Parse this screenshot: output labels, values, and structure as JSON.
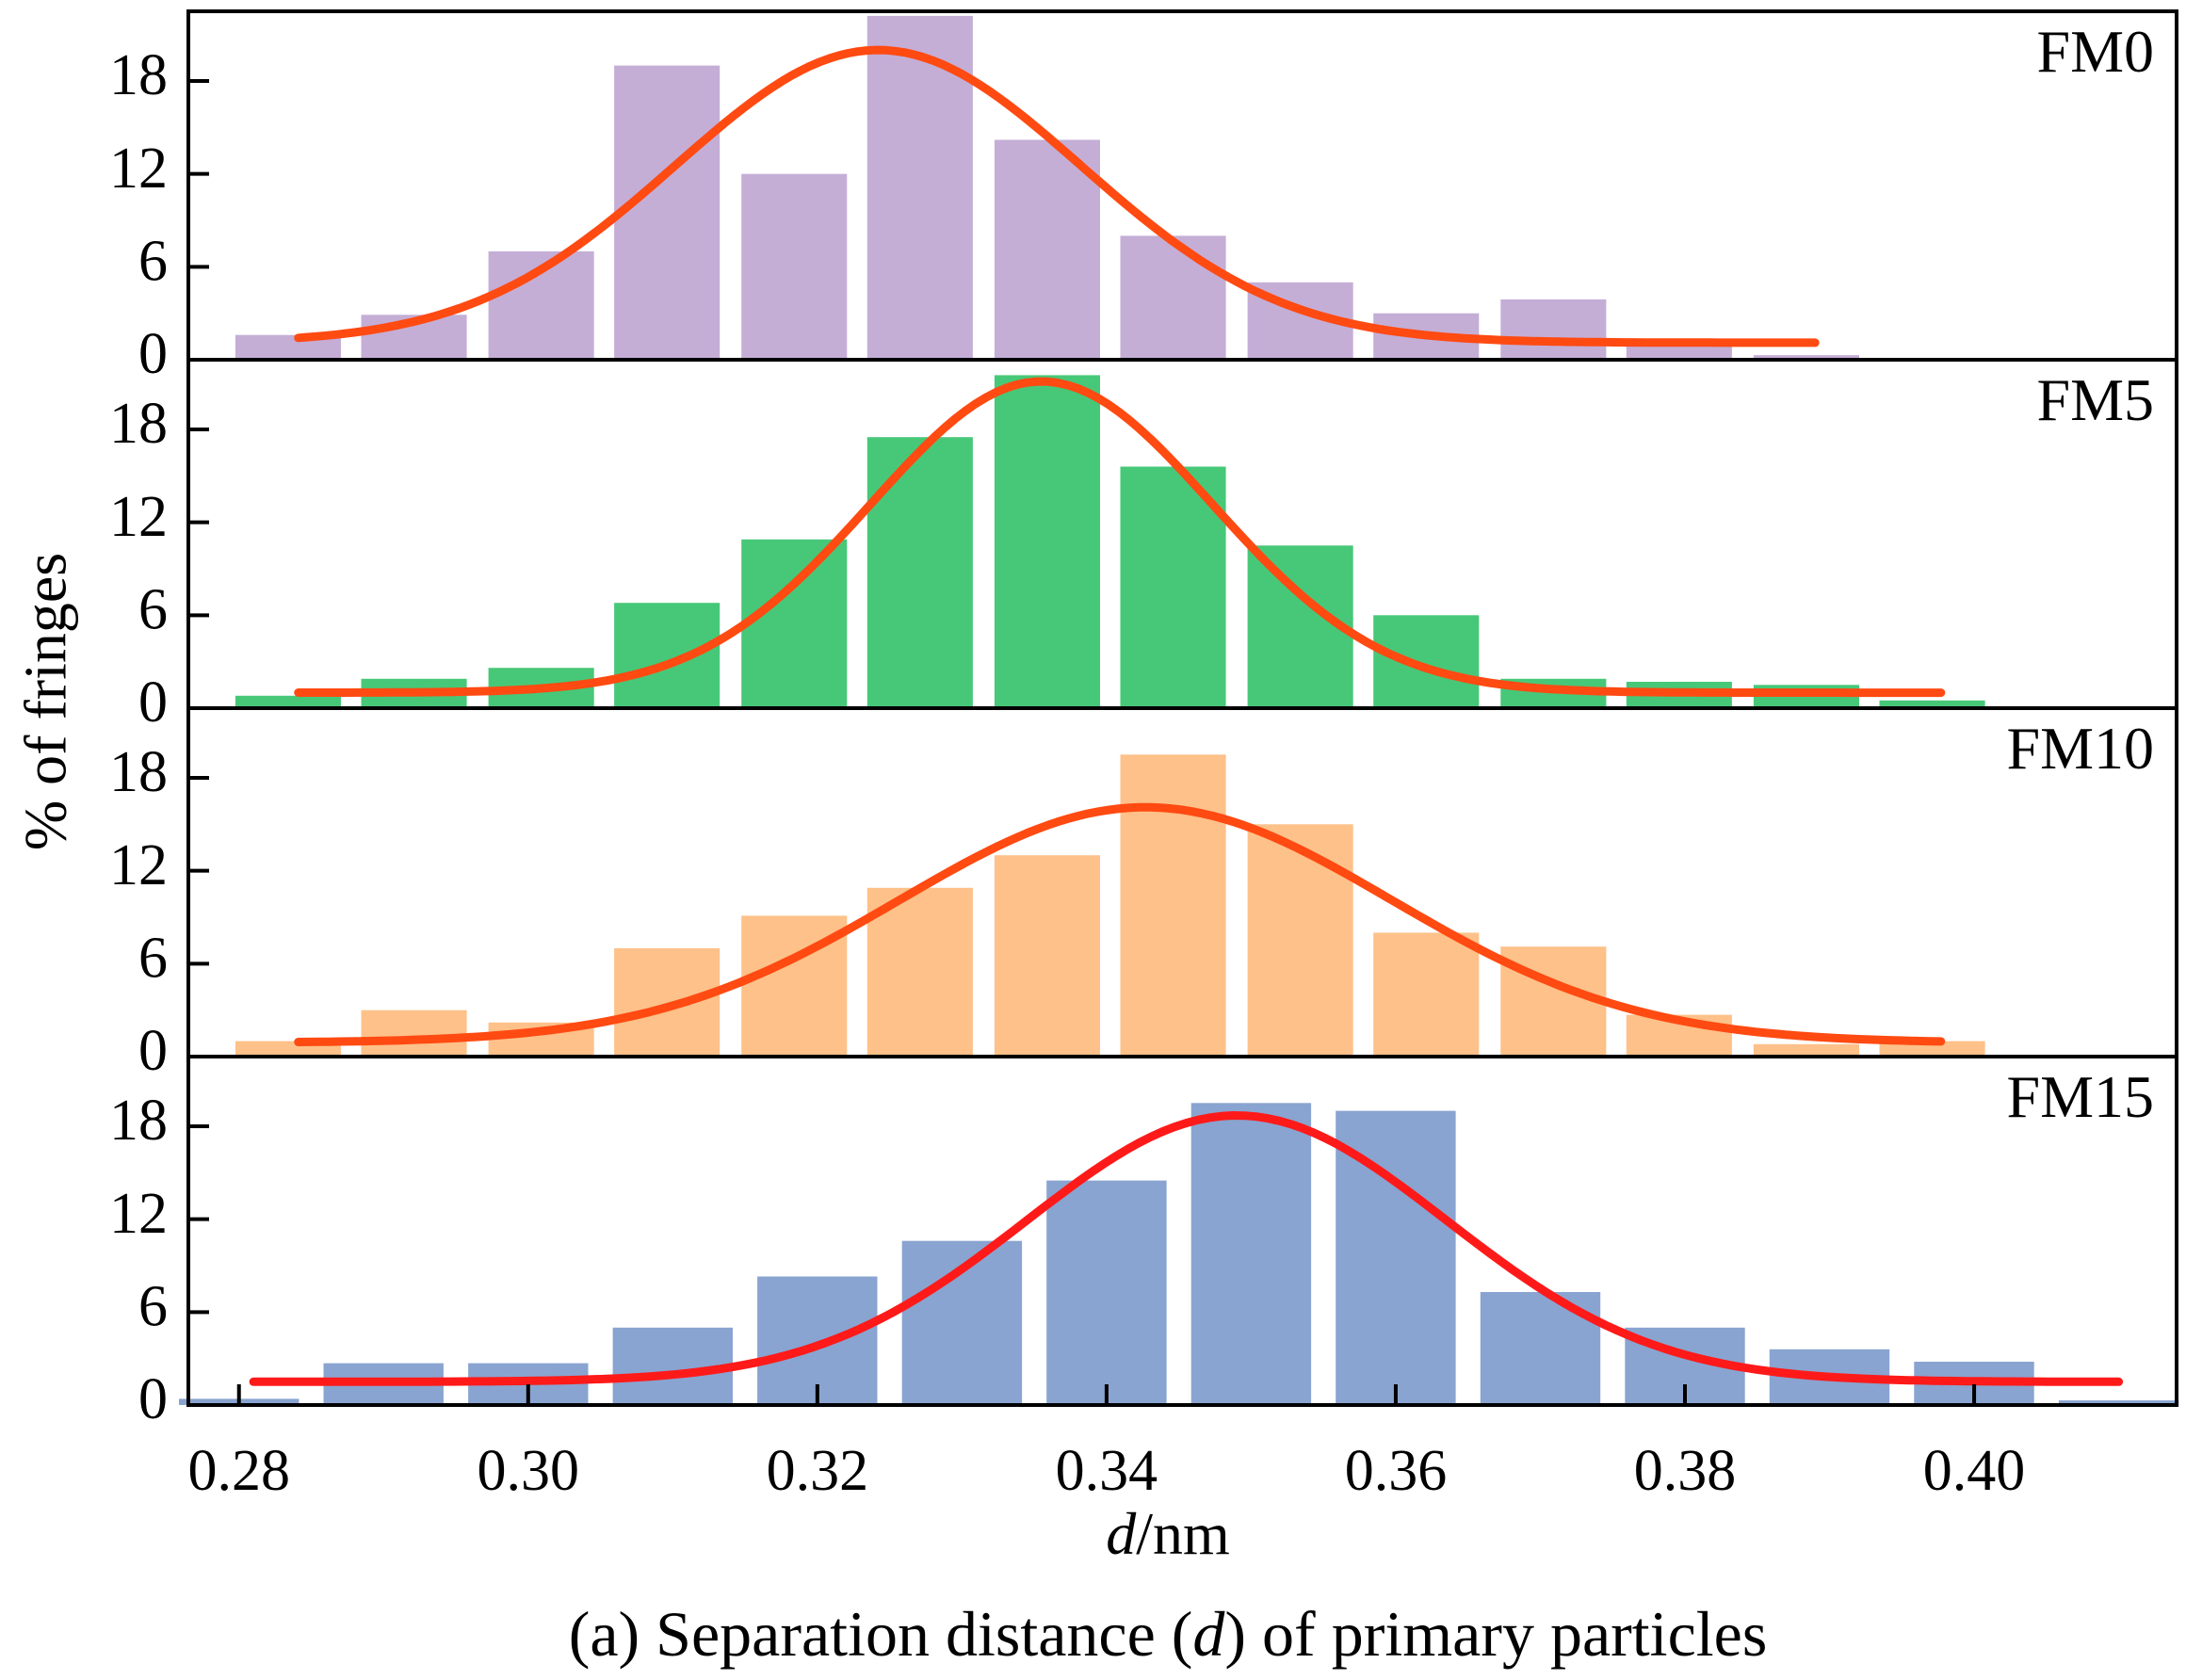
{
  "chart_data": {
    "type": "bar",
    "caption": "(a) Separation distance (d) of primary particles",
    "caption_parts": {
      "before": "(a) Separation distance (",
      "var": "d",
      "after": ") of primary particles"
    },
    "xlabel_parts": {
      "var": "d",
      "unit": "/nm"
    },
    "ylabel": "% of fringes",
    "xlim": [
      0.2765,
      0.414
    ],
    "ylim": [
      0,
      22.5
    ],
    "xticks": [
      0.28,
      0.3,
      0.32,
      0.34,
      0.36,
      0.38,
      0.4
    ],
    "xtick_labels": [
      "0.28",
      "0.30",
      "0.32",
      "0.34",
      "0.36",
      "0.38",
      "0.40"
    ],
    "yticks": [
      0,
      6,
      12,
      18
    ],
    "ytick_labels": [
      "0",
      "6",
      "12",
      "18"
    ],
    "grid": false,
    "panels": [
      {
        "label": "FM0",
        "bar_color": "#c4aed6",
        "fit_color": "#ff4a12",
        "bar_width": 0.0073,
        "x": [
          0.2834,
          0.2921,
          0.3009,
          0.3096,
          0.3184,
          0.3271,
          0.3359,
          0.3446,
          0.3534,
          0.3621,
          0.3709,
          0.3796,
          0.3884
        ],
        "values": [
          1.6,
          2.9,
          7.0,
          19.0,
          12.0,
          22.2,
          14.2,
          8.0,
          5.0,
          3.0,
          3.9,
          0.9,
          0.3
        ],
        "fit_range": [
          0.2841,
          0.389
        ],
        "fit": {
          "peak": 18.9,
          "center": 0.3242,
          "sigma": 0.014,
          "baseline": 1.1
        }
      },
      {
        "label": "FM5",
        "bar_color": "#47c878",
        "fit_color": "#ff4a12",
        "bar_width": 0.0073,
        "x": [
          0.2834,
          0.2921,
          0.3009,
          0.3096,
          0.3184,
          0.3271,
          0.3359,
          0.3446,
          0.3534,
          0.3621,
          0.3709,
          0.3796,
          0.3884,
          0.3971
        ],
        "values": [
          0.8,
          1.9,
          2.6,
          6.8,
          10.9,
          17.5,
          21.5,
          15.6,
          10.5,
          6.0,
          1.9,
          1.7,
          1.5,
          0.5
        ],
        "fit_range": [
          0.2841,
          0.3977
        ],
        "fit": {
          "peak": 20.1,
          "center": 0.3355,
          "sigma": 0.0118,
          "baseline": 1.0
        }
      },
      {
        "label": "FM10",
        "bar_color": "#fdc189",
        "fit_color": "#ff4a12",
        "bar_width": 0.0073,
        "x": [
          0.2834,
          0.2921,
          0.3009,
          0.3096,
          0.3184,
          0.3271,
          0.3359,
          0.3446,
          0.3534,
          0.3621,
          0.3709,
          0.3796,
          0.3884,
          0.3971
        ],
        "values": [
          1.0,
          3.0,
          2.2,
          7.0,
          9.1,
          10.9,
          13.0,
          19.5,
          15.0,
          8.0,
          7.1,
          2.7,
          0.8,
          1.0
        ],
        "fit_range": [
          0.2841,
          0.3977
        ],
        "fit": {
          "peak": 15.2,
          "center": 0.3427,
          "sigma": 0.017,
          "baseline": 0.9
        }
      },
      {
        "label": "FM15",
        "bar_color": "#89a4d0",
        "fit_color": "#ff1a1a",
        "bar_width": 0.0083,
        "x": [
          0.28,
          0.29,
          0.3,
          0.31,
          0.32,
          0.33,
          0.34,
          0.35,
          0.36,
          0.37,
          0.38,
          0.39,
          0.4,
          0.41
        ],
        "values": [
          0.4,
          2.7,
          2.7,
          5.0,
          8.3,
          10.6,
          14.5,
          19.5,
          19.0,
          7.3,
          5.0,
          3.6,
          2.8,
          0.3
        ],
        "fit_range": [
          0.281,
          0.41
        ],
        "fit": {
          "peak": 17.2,
          "center": 0.349,
          "sigma": 0.0145,
          "baseline": 1.5
        }
      }
    ]
  }
}
